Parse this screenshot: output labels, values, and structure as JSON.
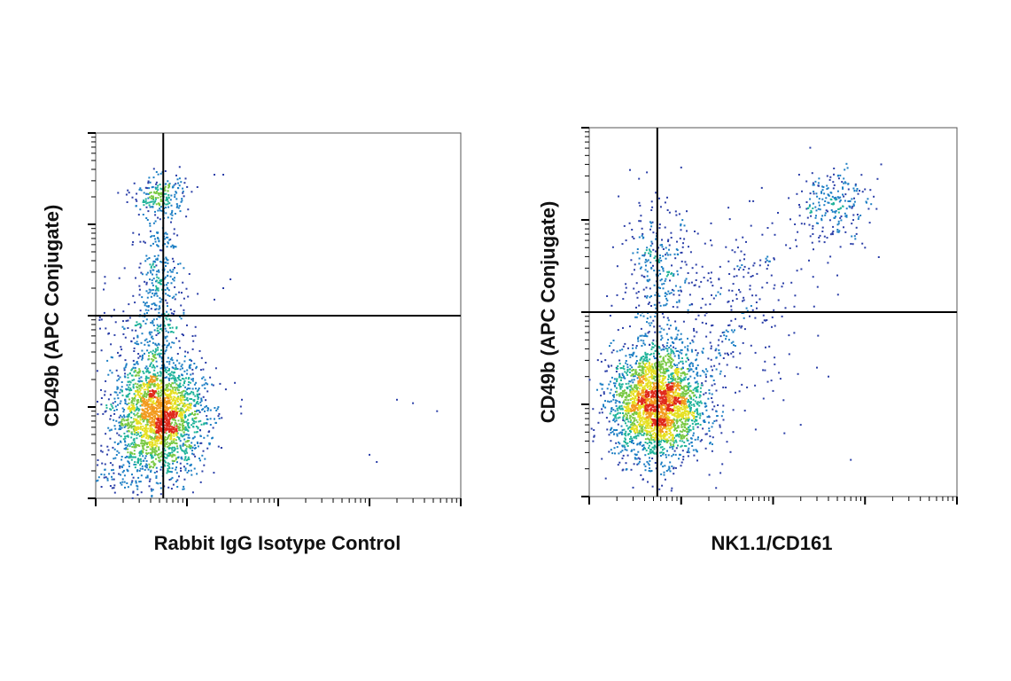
{
  "chart_data": [
    {
      "type": "scatter",
      "title": "",
      "xlabel": "Rabbit IgG Isotype Control",
      "ylabel": "CD49b (APC Conjugate)",
      "x_scale": "log",
      "y_scale": "log",
      "xlim": [
        1,
        10000
      ],
      "ylim": [
        1,
        10000
      ],
      "grid": false,
      "density_colormap": [
        "#2b3fa8",
        "#1d7fc4",
        "#1fb39a",
        "#79c944",
        "#e6e022",
        "#f29a1d",
        "#e02a1c"
      ],
      "gates": {
        "x": 5.5,
        "y": 100
      },
      "populations": [
        {
          "cx": 5.0,
          "cy": 8,
          "sx": 0.25,
          "sy": 0.3,
          "n": 2200
        },
        {
          "cx": 5.0,
          "cy": 2000,
          "sx": 0.15,
          "sy": 0.12,
          "n": 200
        },
        {
          "cx": 5.0,
          "cy": 200,
          "sx": 0.12,
          "sy": 0.45,
          "n": 350
        },
        {
          "cx": 2.5,
          "cy": 2,
          "sx": 0.35,
          "sy": 0.15,
          "n": 150
        },
        {
          "cx": 3.5,
          "cy": 70,
          "sx": 0.3,
          "sy": 0.3,
          "n": 120
        }
      ],
      "sparse_points": [
        {
          "x": 20,
          "y": 3500
        },
        {
          "x": 25,
          "y": 3500
        },
        {
          "x": 8,
          "y": 2500
        },
        {
          "x": 30,
          "y": 250
        },
        {
          "x": 25,
          "y": 200
        },
        {
          "x": 20,
          "y": 150
        },
        {
          "x": 6,
          "y": 110
        },
        {
          "x": 40,
          "y": 12
        },
        {
          "x": 2000,
          "y": 12
        },
        {
          "x": 3000,
          "y": 11
        },
        {
          "x": 5500,
          "y": 9
        },
        {
          "x": 1000,
          "y": 3
        },
        {
          "x": 1200,
          "y": 2.5
        }
      ]
    },
    {
      "type": "scatter",
      "title": "",
      "xlabel": "NK1.1/CD161",
      "ylabel": "CD49b (APC Conjugate)",
      "x_scale": "log",
      "y_scale": "log",
      "xlim": [
        1,
        10000
      ],
      "ylim": [
        1,
        10000
      ],
      "grid": false,
      "density_colormap": [
        "#2b3fa8",
        "#1d7fc4",
        "#1fb39a",
        "#79c944",
        "#e6e022",
        "#f29a1d",
        "#e02a1c"
      ],
      "gates": {
        "x": 5.5,
        "y": 100
      },
      "populations": [
        {
          "cx": 5.5,
          "cy": 10,
          "sx": 0.25,
          "sy": 0.3,
          "n": 2600
        },
        {
          "cx": 450,
          "cy": 1500,
          "sx": 0.2,
          "sy": 0.2,
          "n": 220
        },
        {
          "cx": 5.5,
          "cy": 250,
          "sx": 0.2,
          "sy": 0.4,
          "n": 300
        },
        {
          "cx": 25,
          "cy": 60,
          "sx": 0.4,
          "sy": 0.45,
          "n": 250
        },
        {
          "cx": 80,
          "cy": 300,
          "sx": 0.35,
          "sy": 0.35,
          "n": 100
        }
      ],
      "sparse_points": [
        {
          "x": 10,
          "y": 3700
        },
        {
          "x": 600,
          "y": 3500
        },
        {
          "x": 1500,
          "y": 4000
        },
        {
          "x": 1000,
          "y": 500
        },
        {
          "x": 500,
          "y": 250
        },
        {
          "x": 400,
          "y": 20
        },
        {
          "x": 200,
          "y": 6
        },
        {
          "x": 700,
          "y": 2.5
        },
        {
          "x": 300,
          "y": 25
        },
        {
          "x": 150,
          "y": 35
        }
      ]
    }
  ]
}
